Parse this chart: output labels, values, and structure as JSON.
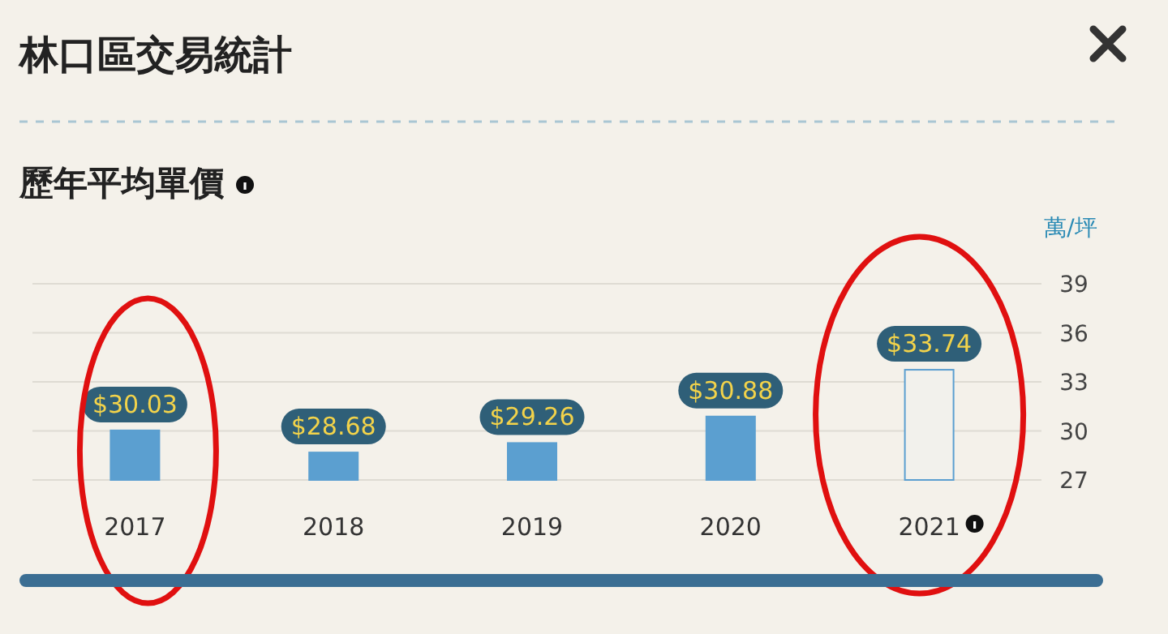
{
  "chart_data": {
    "type": "bar",
    "title": "林口區交易統計",
    "subtitle": "歷年平均單價",
    "ylabel": "萬/坪",
    "categories": [
      "2017",
      "2018",
      "2019",
      "2020",
      "2021"
    ],
    "values": [
      30.03,
      28.68,
      29.26,
      30.88,
      33.74
    ],
    "colors": [
      "#5b9fd0",
      "#5b9fd0",
      "#5b9fd0",
      "#5b9fd0",
      "#f2f1ec"
    ],
    "value_labels": [
      "$30.03",
      "$28.68",
      "$29.26",
      "$30.88",
      "$33.74"
    ],
    "ylim": [
      27,
      39
    ],
    "yticks": [
      27,
      30,
      33,
      36,
      39
    ],
    "grid": "y"
  }
}
